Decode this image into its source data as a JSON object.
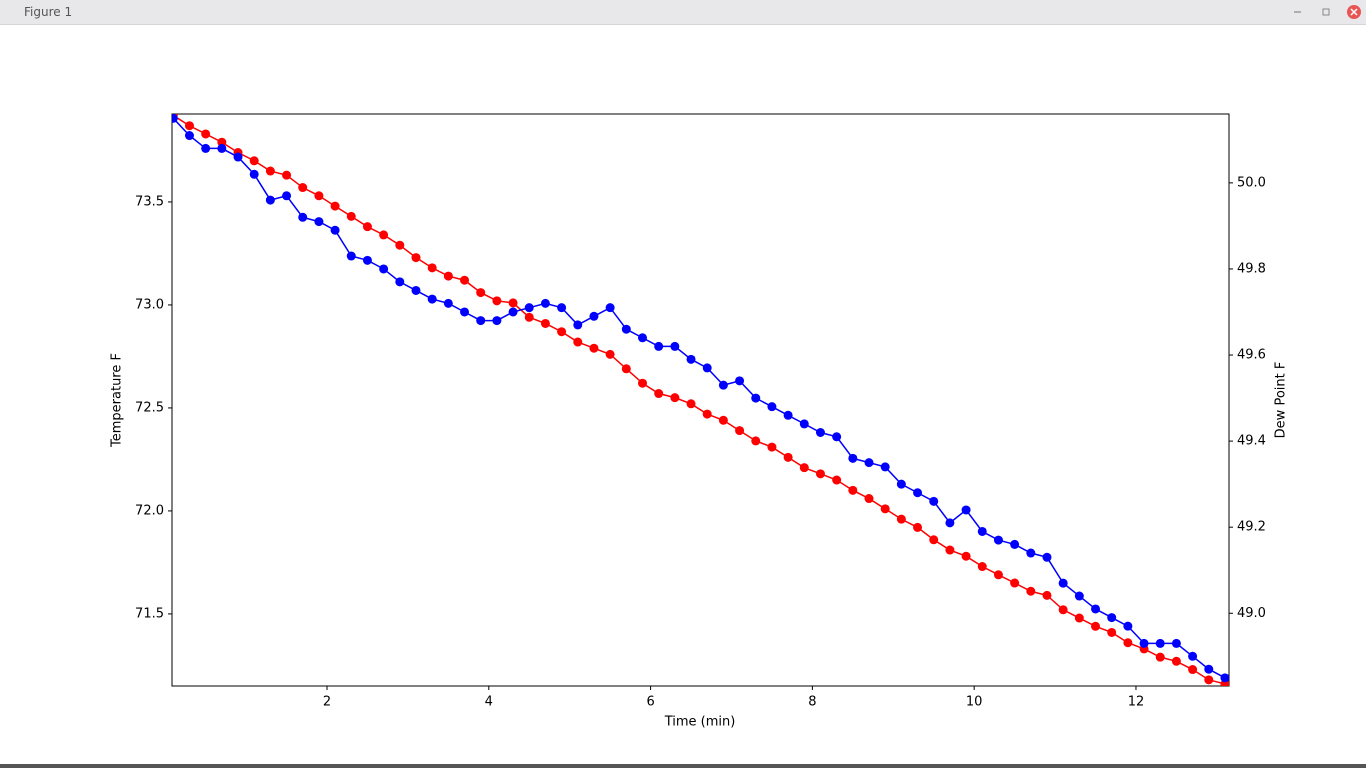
{
  "window": {
    "title": "Figure 1"
  },
  "chart_data": {
    "type": "line",
    "xlabel": "Time (min)",
    "ylabel": "Temperature F",
    "y2label": "Dew Point F",
    "x": [
      0.1,
      0.3,
      0.5,
      0.7,
      0.9,
      1.1,
      1.3,
      1.5,
      1.7,
      1.9,
      2.1,
      2.3,
      2.5,
      2.7,
      2.9,
      3.1,
      3.3,
      3.5,
      3.7,
      3.9,
      4.1,
      4.3,
      4.5,
      4.7,
      4.9,
      5.1,
      5.3,
      5.5,
      5.7,
      5.9,
      6.1,
      6.3,
      6.5,
      6.7,
      6.9,
      7.1,
      7.3,
      7.5,
      7.7,
      7.9,
      8.1,
      8.3,
      8.5,
      8.7,
      8.9,
      9.1,
      9.3,
      9.5,
      9.7,
      9.9,
      10.1,
      10.3,
      10.5,
      10.7,
      10.9,
      11.1,
      11.3,
      11.5,
      11.7,
      11.9,
      12.1,
      12.3,
      12.5,
      12.7,
      12.9,
      13.1
    ],
    "series": [
      {
        "name": "Temperature F",
        "color": "#ff0000",
        "axis": "y",
        "values": [
          73.92,
          73.87,
          73.83,
          73.79,
          73.74,
          73.7,
          73.65,
          73.63,
          73.57,
          73.53,
          73.48,
          73.43,
          73.38,
          73.34,
          73.29,
          73.23,
          73.18,
          73.14,
          73.12,
          73.06,
          73.02,
          73.01,
          72.94,
          72.91,
          72.87,
          72.82,
          72.79,
          72.76,
          72.69,
          72.62,
          72.57,
          72.55,
          72.52,
          72.47,
          72.44,
          72.39,
          72.34,
          72.31,
          72.26,
          72.21,
          72.18,
          72.15,
          72.1,
          72.06,
          72.01,
          71.96,
          71.92,
          71.86,
          71.81,
          71.78,
          71.73,
          71.69,
          71.65,
          71.61,
          71.59,
          71.52,
          71.48,
          71.44,
          71.41,
          71.36,
          71.33,
          71.29,
          71.27,
          71.23,
          71.18,
          71.16
        ]
      },
      {
        "name": "Dew Point F",
        "color": "#0000ff",
        "axis": "y2",
        "values": [
          50.15,
          50.11,
          50.08,
          50.08,
          50.06,
          50.02,
          49.96,
          49.97,
          49.92,
          49.91,
          49.89,
          49.83,
          49.82,
          49.8,
          49.77,
          49.75,
          49.73,
          49.72,
          49.7,
          49.68,
          49.68,
          49.7,
          49.71,
          49.72,
          49.71,
          49.67,
          49.69,
          49.71,
          49.66,
          49.64,
          49.62,
          49.62,
          49.59,
          49.57,
          49.53,
          49.54,
          49.5,
          49.48,
          49.46,
          49.44,
          49.42,
          49.41,
          49.36,
          49.35,
          49.34,
          49.3,
          49.28,
          49.26,
          49.21,
          49.24,
          49.19,
          49.17,
          49.16,
          49.14,
          49.13,
          49.07,
          49.04,
          49.01,
          48.99,
          48.97,
          48.93,
          48.93,
          48.93,
          48.9,
          48.87,
          48.85
        ]
      }
    ],
    "xlim": [
      0.084,
      13.15
    ],
    "xticks": [
      2,
      4,
      6,
      8,
      10,
      12
    ],
    "ylim": [
      71.15,
      73.927
    ],
    "yticks": [
      71.5,
      {
        "value": 72,
        "label": "72.0"
      },
      72.5,
      {
        "value": 73,
        "label": "73.0"
      },
      73.5
    ],
    "y2lim": [
      48.831,
      50.16
    ],
    "y2ticks": [
      {
        "value": 49,
        "label": "49.0"
      },
      49.2,
      49.4,
      49.6,
      49.8,
      {
        "value": 50,
        "label": "50.0"
      }
    ]
  }
}
